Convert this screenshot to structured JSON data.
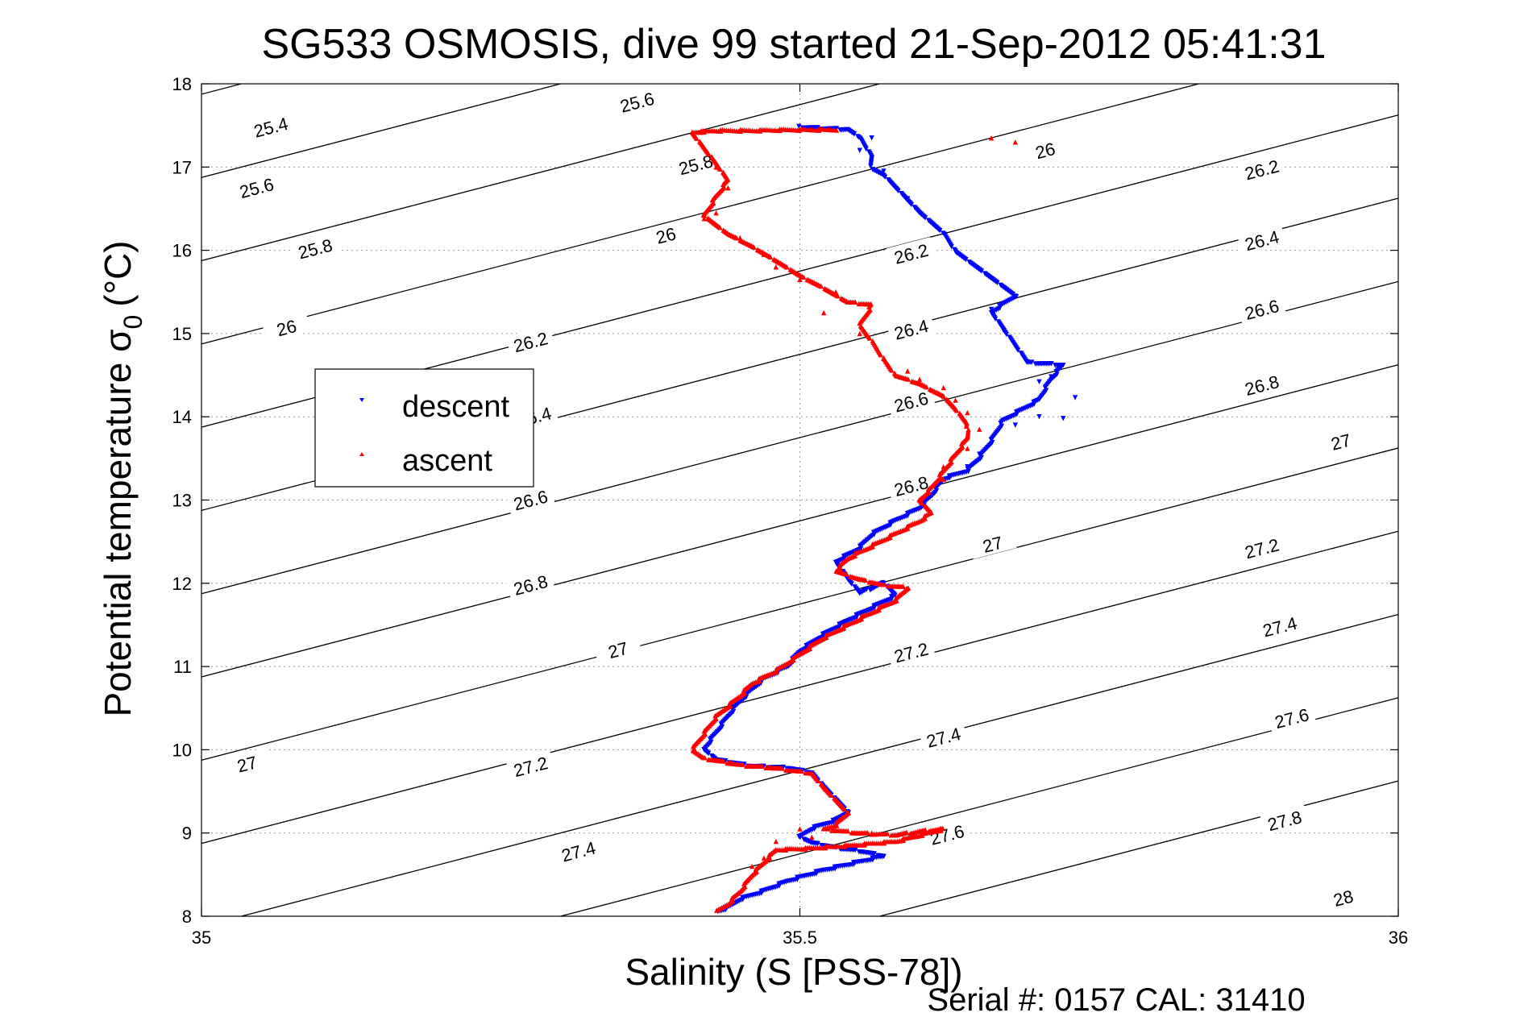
{
  "chart_data": {
    "type": "scatter",
    "title": "SG533 OSMOSIS, dive 99 started 21-Sep-2012 05:41:31",
    "xlabel": "Salinity (S [PSS-78])",
    "ylabel_main": "Potential temperature σ",
    "ylabel_sub": "0",
    "ylabel_unit": "(°C)",
    "footer": "Serial #: 0157  CAL: 31410",
    "xlim": [
      35,
      36
    ],
    "ylim": [
      8,
      18
    ],
    "xticks": [
      35,
      35.5,
      36
    ],
    "xtick_labels": [
      "35",
      "35.5",
      "36"
    ],
    "yticks": [
      8,
      9,
      10,
      11,
      12,
      13,
      14,
      15,
      16,
      17,
      18
    ],
    "ytick_labels": [
      "8",
      "9",
      "10",
      "11",
      "12",
      "13",
      "14",
      "15",
      "16",
      "17",
      "18"
    ],
    "grid": true,
    "legend": {
      "placement": "upper-left",
      "entries": [
        "descent",
        "ascent"
      ]
    },
    "colors": {
      "descent": "#0000ff",
      "ascent": "#ff0000",
      "contour": "#000000",
      "grid": "#999999"
    },
    "contour_levels": [
      25.4,
      25.6,
      25.8,
      26,
      26.2,
      26.4,
      26.6,
      26.8,
      27,
      27.2,
      27.4,
      27.6,
      27.8,
      28
    ],
    "contour_labels": [
      {
        "text": "25.4",
        "s": 35.058,
        "t": 17.48
      },
      {
        "text": "25.6",
        "s": 35.364,
        "t": 17.78
      },
      {
        "text": "25.6",
        "s": 35.046,
        "t": 16.75
      },
      {
        "text": "25.8",
        "s": 35.413,
        "t": 17.03
      },
      {
        "text": "25.8",
        "s": 35.095,
        "t": 16.02
      },
      {
        "text": "26",
        "s": 35.388,
        "t": 16.18
      },
      {
        "text": "26",
        "s": 35.705,
        "t": 17.2
      },
      {
        "text": "26",
        "s": 35.071,
        "t": 15.07
      },
      {
        "text": "26.2",
        "s": 35.886,
        "t": 16.97
      },
      {
        "text": "26.2",
        "s": 35.593,
        "t": 15.96
      },
      {
        "text": "26.2",
        "s": 35.275,
        "t": 14.9
      },
      {
        "text": "26.4",
        "s": 35.886,
        "t": 16.12
      },
      {
        "text": "26.4",
        "s": 35.593,
        "t": 15.05
      },
      {
        "text": "26.4",
        "s": 35.278,
        "t": 14.0
      },
      {
        "text": "26.6",
        "s": 35.886,
        "t": 15.29
      },
      {
        "text": "26.6",
        "s": 35.593,
        "t": 14.18
      },
      {
        "text": "26.6",
        "s": 35.275,
        "t": 13.0
      },
      {
        "text": "26.8",
        "s": 35.886,
        "t": 14.38
      },
      {
        "text": "26.8",
        "s": 35.593,
        "t": 13.17
      },
      {
        "text": "26.8",
        "s": 35.275,
        "t": 11.98
      },
      {
        "text": "27",
        "s": 35.952,
        "t": 13.7
      },
      {
        "text": "27",
        "s": 35.661,
        "t": 12.47
      },
      {
        "text": "27",
        "s": 35.348,
        "t": 11.2
      },
      {
        "text": "27",
        "s": 35.038,
        "t": 9.83
      },
      {
        "text": "27.2",
        "s": 35.886,
        "t": 12.42
      },
      {
        "text": "27.2",
        "s": 35.593,
        "t": 11.17
      },
      {
        "text": "27.2",
        "s": 35.275,
        "t": 9.8
      },
      {
        "text": "27.4",
        "s": 35.901,
        "t": 11.48
      },
      {
        "text": "27.4",
        "s": 35.62,
        "t": 10.15
      },
      {
        "text": "27.4",
        "s": 35.315,
        "t": 8.78
      },
      {
        "text": "27.6",
        "s": 35.911,
        "t": 10.38
      },
      {
        "text": "27.6",
        "s": 35.623,
        "t": 8.98
      },
      {
        "text": "27.8",
        "s": 35.905,
        "t": 9.15
      },
      {
        "text": "28",
        "s": 35.954,
        "t": 8.22
      }
    ],
    "series": [
      {
        "name": "descent",
        "marker": "down-triangle",
        "path": [
          [
            35.5,
            17.48
          ],
          [
            35.52,
            17.46
          ],
          [
            35.54,
            17.45
          ],
          [
            35.55,
            17.35
          ],
          [
            35.56,
            17.12
          ],
          [
            35.56,
            16.98
          ],
          [
            35.57,
            16.9
          ],
          [
            35.58,
            16.75
          ],
          [
            35.59,
            16.6
          ],
          [
            35.6,
            16.45
          ],
          [
            35.62,
            16.2
          ],
          [
            35.63,
            15.98
          ],
          [
            35.68,
            15.45
          ],
          [
            35.66,
            15.25
          ],
          [
            35.67,
            15.05
          ],
          [
            35.69,
            14.65
          ],
          [
            35.72,
            14.62
          ],
          [
            35.71,
            14.45
          ],
          [
            35.7,
            14.2
          ],
          [
            35.67,
            13.95
          ],
          [
            35.66,
            13.7
          ],
          [
            35.65,
            13.5
          ],
          [
            35.64,
            13.35
          ],
          [
            35.62,
            13.25
          ],
          [
            35.61,
            13.05
          ],
          [
            35.6,
            12.9
          ],
          [
            35.58,
            12.75
          ],
          [
            35.56,
            12.58
          ],
          [
            35.55,
            12.42
          ],
          [
            35.53,
            12.25
          ],
          [
            35.54,
            12.05
          ],
          [
            35.55,
            11.88
          ],
          [
            35.57,
            12.0
          ],
          [
            35.58,
            11.85
          ],
          [
            35.56,
            11.7
          ],
          [
            35.54,
            11.55
          ],
          [
            35.52,
            11.38
          ],
          [
            35.5,
            11.18
          ],
          [
            35.49,
            11.0
          ],
          [
            35.47,
            10.85
          ],
          [
            35.46,
            10.72
          ],
          [
            35.45,
            10.58
          ],
          [
            35.44,
            10.4
          ],
          [
            35.43,
            10.2
          ],
          [
            35.42,
            10.0
          ],
          [
            35.43,
            9.88
          ],
          [
            35.46,
            9.8
          ],
          [
            35.49,
            9.78
          ],
          [
            35.51,
            9.72
          ],
          [
            35.52,
            9.55
          ],
          [
            35.53,
            9.4
          ],
          [
            35.54,
            9.25
          ],
          [
            35.53,
            9.15
          ],
          [
            35.51,
            9.05
          ],
          [
            35.5,
            8.95
          ],
          [
            35.51,
            8.88
          ],
          [
            35.53,
            8.82
          ],
          [
            35.55,
            8.78
          ],
          [
            35.57,
            8.72
          ],
          [
            35.55,
            8.65
          ],
          [
            35.52,
            8.55
          ],
          [
            35.49,
            8.42
          ],
          [
            35.47,
            8.3
          ],
          [
            35.45,
            8.2
          ],
          [
            35.44,
            8.1
          ],
          [
            35.43,
            8.05
          ]
        ],
        "scattered": [
          [
            35.56,
            17.35
          ],
          [
            35.55,
            17.2
          ],
          [
            35.57,
            16.95
          ],
          [
            35.59,
            16.62
          ],
          [
            35.63,
            15.99
          ],
          [
            35.68,
            15.45
          ],
          [
            35.66,
            15.29
          ],
          [
            35.67,
            15.04
          ],
          [
            35.69,
            14.66
          ],
          [
            35.72,
            14.62
          ],
          [
            35.71,
            14.48
          ],
          [
            35.7,
            14.42
          ],
          [
            35.73,
            14.23
          ],
          [
            35.72,
            13.98
          ],
          [
            35.7,
            14.0
          ],
          [
            35.68,
            13.9
          ],
          [
            35.66,
            13.72
          ],
          [
            35.65,
            13.55
          ],
          [
            35.64,
            13.4
          ]
        ]
      },
      {
        "name": "ascent",
        "marker": "up-triangle",
        "path": [
          [
            35.53,
            17.45
          ],
          [
            35.49,
            17.45
          ],
          [
            35.46,
            17.44
          ],
          [
            35.43,
            17.44
          ],
          [
            35.41,
            17.42
          ],
          [
            35.43,
            17.05
          ],
          [
            35.44,
            16.85
          ],
          [
            35.43,
            16.65
          ],
          [
            35.42,
            16.42
          ],
          [
            35.44,
            16.2
          ],
          [
            35.46,
            16.05
          ],
          [
            35.48,
            15.88
          ],
          [
            35.5,
            15.7
          ],
          [
            35.52,
            15.55
          ],
          [
            35.54,
            15.38
          ],
          [
            35.56,
            15.35
          ],
          [
            35.55,
            15.1
          ],
          [
            35.56,
            14.92
          ],
          [
            35.57,
            14.7
          ],
          [
            35.58,
            14.5
          ],
          [
            35.6,
            14.4
          ],
          [
            35.62,
            14.25
          ],
          [
            35.63,
            14.1
          ],
          [
            35.64,
            13.92
          ],
          [
            35.64,
            13.75
          ],
          [
            35.63,
            13.55
          ],
          [
            35.62,
            13.35
          ],
          [
            35.61,
            13.15
          ],
          [
            35.6,
            13.0
          ],
          [
            35.61,
            12.85
          ],
          [
            35.6,
            12.75
          ],
          [
            35.58,
            12.6
          ],
          [
            35.56,
            12.45
          ],
          [
            35.54,
            12.3
          ],
          [
            35.53,
            12.15
          ],
          [
            35.55,
            12.05
          ],
          [
            35.57,
            11.98
          ],
          [
            35.59,
            11.95
          ],
          [
            35.58,
            11.8
          ],
          [
            35.56,
            11.65
          ],
          [
            35.54,
            11.5
          ],
          [
            35.52,
            11.35
          ],
          [
            35.5,
            11.15
          ],
          [
            35.48,
            10.95
          ],
          [
            35.46,
            10.8
          ],
          [
            35.45,
            10.65
          ],
          [
            35.43,
            10.4
          ],
          [
            35.42,
            10.2
          ],
          [
            35.41,
            10.0
          ],
          [
            35.42,
            9.9
          ],
          [
            35.45,
            9.82
          ],
          [
            35.48,
            9.78
          ],
          [
            35.51,
            9.72
          ],
          [
            35.52,
            9.55
          ],
          [
            35.53,
            9.4
          ],
          [
            35.54,
            9.25
          ],
          [
            35.53,
            9.1
          ],
          [
            35.52,
            9.05
          ],
          [
            35.55,
            9.0
          ],
          [
            35.58,
            8.98
          ],
          [
            35.6,
            9.02
          ],
          [
            35.62,
            9.05
          ],
          [
            35.58,
            8.9
          ],
          [
            35.54,
            8.85
          ],
          [
            35.51,
            8.82
          ],
          [
            35.48,
            8.8
          ],
          [
            35.46,
            8.5
          ],
          [
            35.45,
            8.3
          ],
          [
            35.44,
            8.15
          ],
          [
            35.43,
            8.05
          ]
        ],
        "scattered": [
          [
            35.42,
            17.42
          ],
          [
            35.43,
            17.0
          ],
          [
            35.44,
            16.75
          ],
          [
            35.43,
            16.45
          ],
          [
            35.42,
            16.38
          ],
          [
            35.45,
            16.15
          ],
          [
            35.47,
            15.95
          ],
          [
            35.48,
            15.8
          ],
          [
            35.5,
            15.65
          ],
          [
            35.53,
            15.5
          ],
          [
            35.52,
            15.25
          ],
          [
            35.55,
            15.0
          ],
          [
            35.57,
            14.7
          ],
          [
            35.59,
            14.55
          ],
          [
            35.6,
            14.45
          ],
          [
            35.62,
            14.35
          ],
          [
            35.63,
            14.2
          ],
          [
            35.64,
            14.05
          ],
          [
            35.65,
            13.85
          ],
          [
            35.64,
            13.62
          ],
          [
            35.62,
            13.4
          ],
          [
            35.62,
            13.25
          ],
          [
            35.66,
            17.35
          ],
          [
            35.68,
            17.3
          ],
          [
            35.5,
            9.05
          ],
          [
            35.48,
            8.9
          ],
          [
            35.47,
            8.7
          ],
          [
            35.46,
            8.6
          ],
          [
            35.51,
            8.95
          ],
          [
            35.56,
            9.0
          ]
        ]
      }
    ]
  }
}
